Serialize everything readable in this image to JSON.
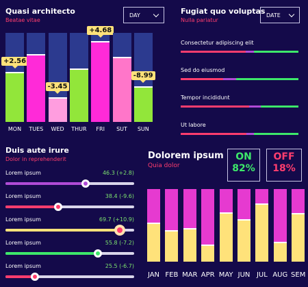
{
  "panel1": {
    "title": "Quasi architecto",
    "subtitle": "Beatae vitae",
    "dropdown": "DAY",
    "chart_data": {
      "type": "bar",
      "categories": [
        "MON",
        "TUES",
        "WED",
        "THUR",
        "FRI",
        "SUT",
        "SUN"
      ],
      "values": [
        56,
        76,
        28,
        60,
        91,
        73,
        40
      ],
      "callouts": [
        "+2.56",
        "",
        "-3.45",
        "",
        "+4.68",
        "",
        "-8.99"
      ],
      "colors": [
        "#92e63a",
        "#ff2ad8",
        "#ff9ddf",
        "#92e63a",
        "#ff2ad8",
        "#ff76c9",
        "#92e63a"
      ],
      "ylim": [
        0,
        100
      ]
    }
  },
  "panel2": {
    "title": "Fugiat quo voluptas",
    "subtitle": "Nulla pariatur",
    "dropdown": "DATE",
    "items": [
      {
        "label": "Consectetur adipiscing elit",
        "segments": [
          {
            "color": "#ff3d6e",
            "to": 0.55
          },
          {
            "color": "#b04bd6",
            "to": 0.62
          },
          {
            "color": "#3de86a",
            "to": 1
          }
        ]
      },
      {
        "label": "Sed do eiusmod",
        "segments": [
          {
            "color": "#ff3d6e",
            "to": 0.36
          },
          {
            "color": "#b04bd6",
            "to": 0.47
          },
          {
            "color": "#3de86a",
            "to": 1
          }
        ]
      },
      {
        "label": "Tempor incididunt",
        "segments": [
          {
            "color": "#ff3d6e",
            "to": 0.58
          },
          {
            "color": "#b04bd6",
            "to": 0.68
          },
          {
            "color": "#3de86a",
            "to": 1
          }
        ]
      },
      {
        "label": "Ut labore",
        "segments": [
          {
            "color": "#ff3d6e",
            "to": 0.56
          },
          {
            "color": "#b04bd6",
            "to": 0.62
          },
          {
            "color": "#3de86a",
            "to": 1
          }
        ]
      }
    ]
  },
  "panel3": {
    "title": "Duis aute irure",
    "subtitle": "Dolor in reprehenderit",
    "sliders": [
      {
        "label": "Lorem ipsum",
        "value": "46.3 (+2.8)",
        "level": 0.62,
        "color": "#b04bd6",
        "knob": "#b04bd6"
      },
      {
        "label": "Lorem ipsum",
        "value": "38.4 (-9.6)",
        "level": 0.41,
        "color": "#ff3d6e",
        "knob": "#ff3d6e"
      },
      {
        "label": "Lorem ipsum",
        "value": "69.7 (+10.9)",
        "level": 0.89,
        "color": "#ffe27a",
        "knob": "#ff3d6e"
      },
      {
        "label": "Lorem ipsum",
        "value": "55.8 (-7.2)",
        "level": 0.72,
        "color": "#3de86a",
        "knob": "#3de86a"
      },
      {
        "label": "Lorem ipsum",
        "value": "25.5 (-6.7)",
        "level": 0.23,
        "color": "#ff3d6e",
        "knob": "#ff3d6e"
      }
    ]
  },
  "panel4": {
    "title": "Dolorem ipsum",
    "subtitle": "Quia dolor",
    "on": {
      "label": "ON",
      "value": "82%",
      "color": "#3de86a"
    },
    "off": {
      "label": "OFF",
      "value": "18%",
      "color": "#ff3d6e"
    },
    "chart_data": {
      "type": "bar",
      "categories": [
        "JAN",
        "FEB",
        "MAR",
        "APR",
        "MAY",
        "JUN",
        "JUL",
        "AUG",
        "SEM"
      ],
      "values": [
        53,
        42,
        45,
        23,
        67,
        58,
        79,
        26,
        66
      ],
      "ylim": [
        0,
        100
      ],
      "colors": {
        "top": "#e63ad0",
        "bottom": "#ffe27a"
      }
    }
  }
}
